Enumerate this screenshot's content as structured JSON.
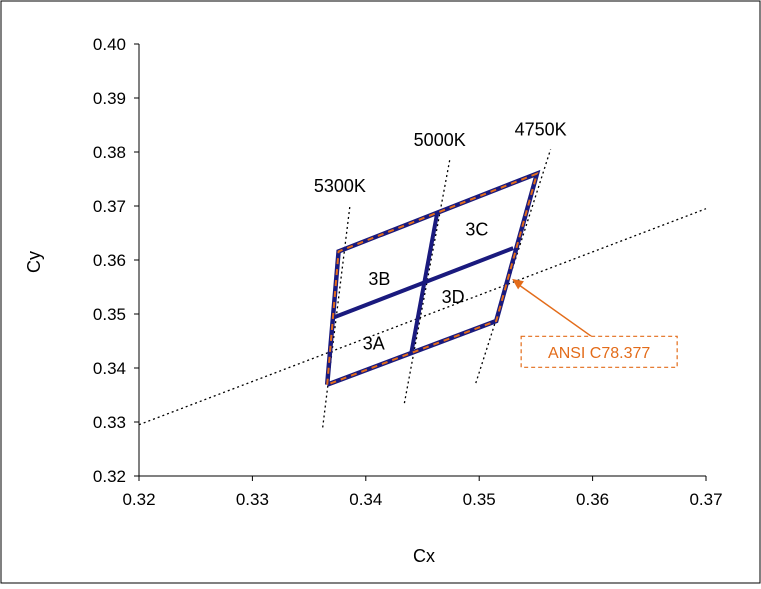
{
  "chart_data": {
    "type": "scatter",
    "xlabel": "Cx",
    "ylabel": "Cy",
    "xlim": [
      0.32,
      0.37
    ],
    "ylim": [
      0.32,
      0.4
    ],
    "x_ticks": [
      "0.32",
      "0.33",
      "0.34",
      "0.35",
      "0.36",
      "0.37"
    ],
    "y_ticks": [
      "0.32",
      "0.33",
      "0.34",
      "0.35",
      "0.36",
      "0.37",
      "0.38",
      "0.39",
      "0.40"
    ],
    "grid": false,
    "black_body_locus": [
      [
        0.32,
        0.3295
      ],
      [
        0.37,
        0.3695
      ]
    ],
    "bins_outline": [
      [
        0.3366,
        0.3369
      ],
      [
        0.3376,
        0.3616
      ],
      [
        0.3551,
        0.376
      ],
      [
        0.3515,
        0.3487
      ],
      [
        0.3366,
        0.3369
      ]
    ],
    "bin_divider_horizontal": [
      [
        0.3371,
        0.3493
      ],
      [
        0.353,
        0.3622
      ]
    ],
    "bin_divider_vertical": [
      [
        0.344,
        0.3427
      ],
      [
        0.3463,
        0.3687
      ]
    ],
    "cct_lines": [
      {
        "label": "5300K",
        "points": [
          [
            0.3362,
            0.329
          ],
          [
            0.3386,
            0.37
          ]
        ]
      },
      {
        "label": "5000K",
        "points": [
          [
            0.3434,
            0.3335
          ],
          [
            0.3474,
            0.3785
          ]
        ]
      },
      {
        "label": "4750K",
        "points": [
          [
            0.3497,
            0.3372
          ],
          [
            0.3563,
            0.3805
          ]
        ]
      }
    ],
    "bins": [
      {
        "label": "3A",
        "pos": [
          0.3407,
          0.3447
        ]
      },
      {
        "label": "3B",
        "pos": [
          0.3412,
          0.3567
        ]
      },
      {
        "label": "3C",
        "pos": [
          0.3498,
          0.3658
        ]
      },
      {
        "label": "3D",
        "pos": [
          0.3477,
          0.3533
        ]
      }
    ],
    "annotation": {
      "text": "ANSI C78.377",
      "target": [
        0.3529,
        0.3565
      ],
      "box_at": [
        0.3537,
        0.343
      ]
    },
    "colors": {
      "outline": "#1a1a7e",
      "dash": "#e36c1a",
      "annotation": "#e36c1a",
      "axis": "#000000"
    }
  }
}
